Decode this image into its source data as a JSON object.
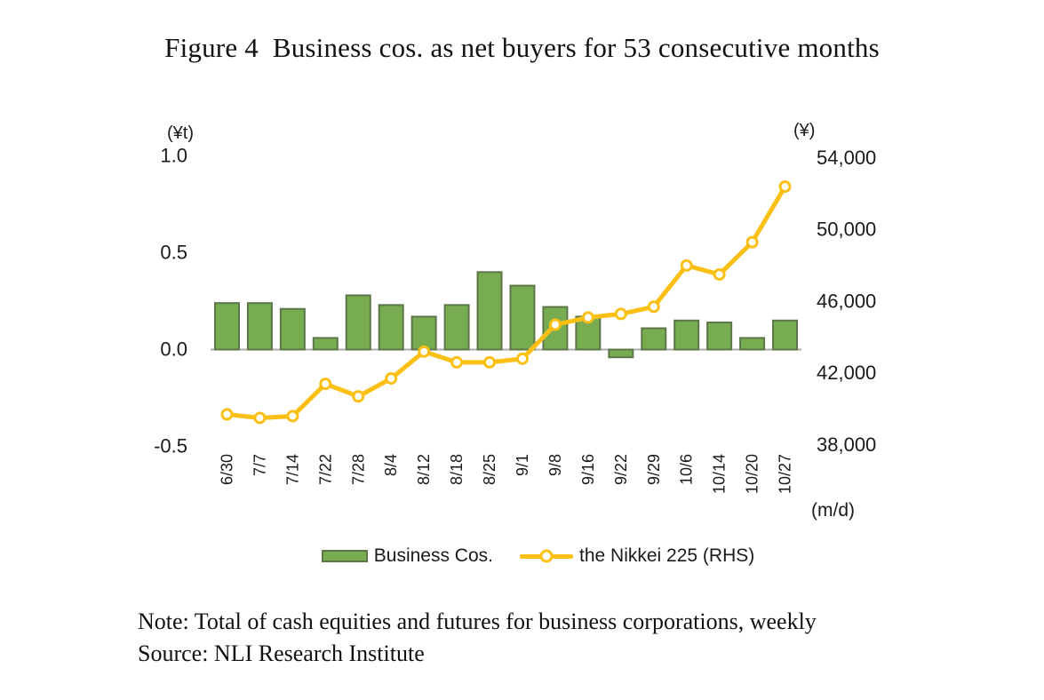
{
  "figure": {
    "title": "Figure 4  Business cos. as net buyers for 53 consecutive months",
    "note": "Note: Total of cash equities and futures for business corporations, weekly",
    "source": "Source: NLI Research Institute"
  },
  "chart_data": {
    "type": "bar+line",
    "title": "Figure 4  Business cos. as net buyers for 53 consecutive months",
    "categories": [
      "6/30",
      "7/7",
      "7/14",
      "7/22",
      "7/28",
      "8/4",
      "8/12",
      "8/18",
      "8/25",
      "9/1",
      "9/8",
      "9/16",
      "9/22",
      "9/29",
      "10/6",
      "10/14",
      "10/20",
      "10/27"
    ],
    "series": [
      {
        "name": "Business Cos.",
        "type": "bar",
        "axis": "left",
        "color": "#77AC51",
        "border_color": "#5C7549",
        "values": [
          0.24,
          0.24,
          0.21,
          0.06,
          0.28,
          0.23,
          0.17,
          0.23,
          0.4,
          0.33,
          0.22,
          0.17,
          -0.04,
          0.11,
          0.15,
          0.14,
          0.06,
          0.15
        ]
      },
      {
        "name": "the Nikkei 225 (RHS)",
        "type": "line",
        "axis": "right",
        "color": "#FCBF13",
        "marker": "open-circle",
        "values": [
          39700,
          39500,
          39600,
          41400,
          40700,
          41700,
          43200,
          42600,
          42600,
          42800,
          44700,
          45100,
          45300,
          45700,
          48000,
          47500,
          49300,
          52400
        ]
      }
    ],
    "left_axis": {
      "unit": "(¥t)",
      "tick_labels": [
        "1.0",
        "0.5",
        "0.0",
        "-0.5"
      ],
      "tick_values": [
        1.0,
        0.5,
        0.0,
        -0.5
      ],
      "range": [
        -0.5,
        1.0
      ]
    },
    "right_axis": {
      "unit": "(¥)",
      "tick_labels": [
        "54,000",
        "50,000",
        "46,000",
        "42,000",
        "38,000"
      ],
      "tick_values": [
        54000,
        50000,
        46000,
        42000,
        38000
      ],
      "range": [
        38000,
        54000
      ]
    },
    "x_axis": {
      "unit": "(m/d)"
    },
    "legend": {
      "position": "bottom",
      "items": [
        "Business Cos.",
        "the Nikkei 225 (RHS)"
      ]
    },
    "grid": false,
    "axis_line_color": "#ACACAC"
  }
}
